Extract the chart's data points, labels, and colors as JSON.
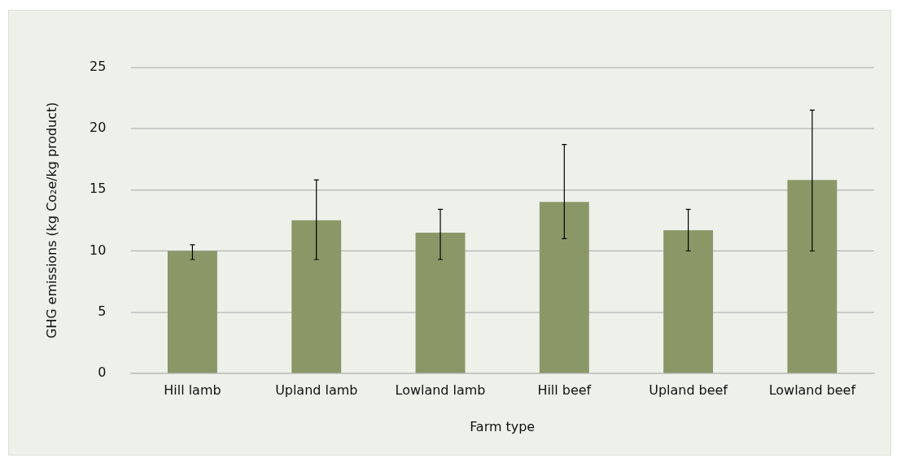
{
  "chart_data": {
    "type": "bar",
    "categories": [
      "Hill lamb",
      "Upland lamb",
      "Lowland lamb",
      "Hill beef",
      "Upland beef",
      "Lowland beef"
    ],
    "values": [
      10.0,
      12.5,
      11.5,
      14.0,
      11.7,
      15.8
    ],
    "errors": [
      [
        9.3,
        10.5
      ],
      [
        9.3,
        15.8
      ],
      [
        9.3,
        13.4
      ],
      [
        11.0,
        18.7
      ],
      [
        10.0,
        13.4
      ],
      [
        10.0,
        21.5
      ]
    ],
    "color": "#8a9868",
    "xlabel": "Farm type",
    "ylabel": "GHG emissions (kg Co₂e/kg product)",
    "ylim": [
      0,
      25
    ],
    "yticks": [
      0,
      5,
      10,
      15,
      20,
      25
    ],
    "grid": "y",
    "legend": false
  }
}
